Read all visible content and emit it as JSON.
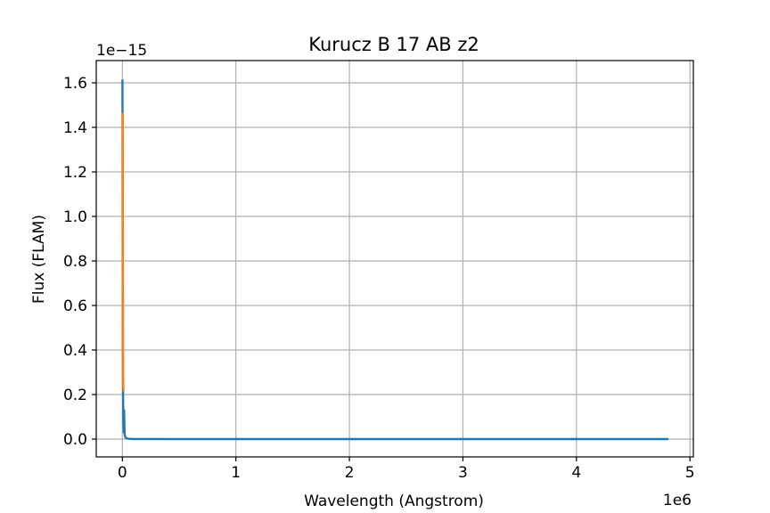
{
  "chart_data": {
    "type": "line",
    "title": "Kurucz B 17 AB z2",
    "xlabel": "Wavelength (Angstrom)",
    "ylabel": "Flux (FLAM)",
    "x_offset_text": "1e6",
    "y_offset_text": "1e−15",
    "xlim": [
      -230000,
      5030000
    ],
    "ylim": [
      -8e-17,
      1.7e-15
    ],
    "x_ticks": [
      0,
      1000000,
      2000000,
      3000000,
      4000000,
      5000000
    ],
    "x_tick_labels": [
      "0",
      "1",
      "2",
      "3",
      "4",
      "5"
    ],
    "y_ticks": [
      0,
      2e-16,
      4e-16,
      6e-16,
      8e-16,
      1e-15,
      1.2e-15,
      1.4e-15,
      1.6e-15
    ],
    "y_tick_labels": [
      "0.0",
      "0.2",
      "0.4",
      "0.6",
      "0.8",
      "1.0",
      "1.2",
      "1.4",
      "1.6"
    ],
    "grid": true,
    "series": [
      {
        "color": "#1f77b4",
        "x": [
          1000,
          2000,
          3000,
          4000,
          5000,
          6000,
          8000,
          10000,
          12000,
          15000,
          20000,
          25000,
          30000,
          40000,
          60000,
          100000,
          200000,
          500000,
          1000000,
          2000000,
          3000000,
          4000000,
          4800000
        ],
        "y": [
          1.61e-15,
          1.2e-15,
          8e-16,
          4.5e-16,
          3e-16,
          2.2e-16,
          1e-16,
          5e-17,
          3e-17,
          1.3e-16,
          2e-17,
          1.2e-17,
          6e-18,
          3e-18,
          1e-18,
          3e-19,
          1e-19,
          1e-20,
          1e-21,
          0,
          0,
          0,
          0
        ]
      },
      {
        "color": "#ff7f0e",
        "x": [
          3000,
          4000,
          5000,
          6000,
          7000,
          8000,
          9000,
          10000
        ],
        "y": [
          1.46e-15,
          1.1e-15,
          7e-16,
          4.5e-16,
          3e-16,
          2.5e-16,
          2.3e-16,
          2.2e-16
        ]
      }
    ]
  }
}
